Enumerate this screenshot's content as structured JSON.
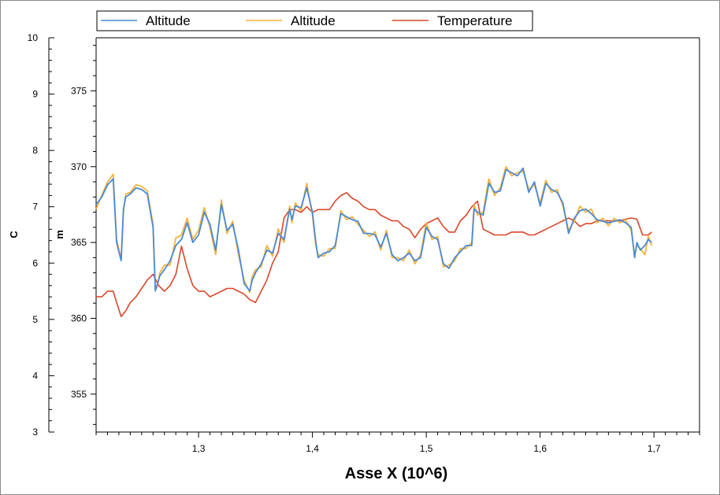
{
  "chart_data": {
    "type": "line",
    "xlabel": "Asse X (10^6)",
    "x_ticks": [
      "1,3",
      "1,4",
      "1,5",
      "1,6",
      "1,7"
    ],
    "x_tick_values": [
      1.3,
      1.4,
      1.5,
      1.6,
      1.7
    ],
    "xlim": [
      1.21,
      1.74
    ],
    "left_axis": {
      "label": "C",
      "ticks": [
        "10",
        "9",
        "8",
        "7",
        "6",
        "5",
        "4",
        "3"
      ],
      "tick_values": [
        10,
        9,
        8,
        7,
        6,
        5,
        4,
        3
      ],
      "ylim": [
        3,
        10
      ]
    },
    "inner_axis": {
      "label": "m",
      "ticks": [
        "375",
        "370",
        "365",
        "360",
        "355"
      ],
      "tick_values": [
        375,
        370,
        365,
        360,
        355
      ],
      "ylim": [
        352.5,
        378.5
      ]
    },
    "legend": {
      "placement": "top",
      "entries": [
        "Altitude",
        "Altitude",
        "Temperature"
      ]
    },
    "series": [
      {
        "name": "Altitude",
        "axis": "m",
        "color": "#4a8ad6",
        "x": [
          1.21,
          1.215,
          1.22,
          1.225,
          1.228,
          1.232,
          1.234,
          1.236,
          1.24,
          1.245,
          1.25,
          1.255,
          1.26,
          1.262,
          1.264,
          1.266,
          1.27,
          1.275,
          1.28,
          1.285,
          1.29,
          1.295,
          1.3,
          1.305,
          1.31,
          1.315,
          1.32,
          1.325,
          1.33,
          1.335,
          1.34,
          1.345,
          1.347,
          1.35,
          1.355,
          1.36,
          1.365,
          1.37,
          1.375,
          1.38,
          1.382,
          1.385,
          1.39,
          1.395,
          1.4,
          1.403,
          1.405,
          1.41,
          1.415,
          1.42,
          1.425,
          1.43,
          1.435,
          1.44,
          1.445,
          1.45,
          1.455,
          1.46,
          1.465,
          1.47,
          1.475,
          1.48,
          1.485,
          1.49,
          1.495,
          1.5,
          1.505,
          1.51,
          1.515,
          1.52,
          1.525,
          1.53,
          1.535,
          1.54,
          1.542,
          1.545,
          1.55,
          1.555,
          1.56,
          1.565,
          1.57,
          1.575,
          1.58,
          1.585,
          1.59,
          1.595,
          1.6,
          1.605,
          1.61,
          1.615,
          1.62,
          1.625,
          1.63,
          1.635,
          1.64,
          1.645,
          1.65,
          1.655,
          1.66,
          1.665,
          1.67,
          1.675,
          1.68,
          1.683,
          1.685,
          1.688,
          1.692,
          1.695,
          1.698
        ],
        "y": [
          367.5,
          368,
          368.8,
          369.2,
          365,
          363.8,
          367.2,
          368,
          368.2,
          368.6,
          368.5,
          368.2,
          366,
          361.8,
          362.3,
          362.8,
          363.2,
          363.8,
          364.8,
          365.2,
          366.3,
          365,
          365.5,
          367,
          366.2,
          364.5,
          367.5,
          365.8,
          366.2,
          364.5,
          362.3,
          361.8,
          362.5,
          363,
          363.6,
          364.5,
          364.3,
          365.6,
          365.2,
          367.2,
          366.5,
          367.4,
          367.3,
          368.6,
          367,
          365,
          364,
          364.3,
          364.4,
          364.8,
          366.9,
          366.7,
          366.5,
          366.4,
          365.6,
          365.6,
          365.5,
          364.7,
          365.6,
          364.2,
          363.8,
          364,
          364.3,
          363.8,
          364,
          366,
          365.4,
          365.2,
          363.6,
          363.3,
          364,
          364.4,
          364.8,
          364.8,
          367.2,
          367,
          366.8,
          368.9,
          368.3,
          368.4,
          369.8,
          369.6,
          369.4,
          369.9,
          368.3,
          369,
          367.4,
          368.9,
          368.5,
          368.3,
          367.6,
          365.6,
          366.6,
          367.1,
          367.2,
          366.9,
          366.5,
          366.4,
          366.3,
          366.4,
          366.5,
          366.3,
          366,
          364,
          365,
          364.5,
          364.8,
          365.2,
          365
        ]
      },
      {
        "name": "Altitude",
        "axis": "m",
        "color": "#f5b33a",
        "x": [
          1.21,
          1.215,
          1.22,
          1.225,
          1.228,
          1.232,
          1.234,
          1.236,
          1.24,
          1.245,
          1.25,
          1.255,
          1.26,
          1.262,
          1.264,
          1.266,
          1.27,
          1.275,
          1.28,
          1.285,
          1.29,
          1.295,
          1.3,
          1.305,
          1.31,
          1.315,
          1.32,
          1.325,
          1.33,
          1.335,
          1.34,
          1.345,
          1.347,
          1.35,
          1.355,
          1.36,
          1.365,
          1.37,
          1.375,
          1.38,
          1.382,
          1.385,
          1.39,
          1.395,
          1.4,
          1.403,
          1.405,
          1.41,
          1.415,
          1.42,
          1.425,
          1.43,
          1.435,
          1.44,
          1.445,
          1.45,
          1.455,
          1.46,
          1.465,
          1.47,
          1.475,
          1.48,
          1.485,
          1.49,
          1.495,
          1.5,
          1.505,
          1.51,
          1.515,
          1.52,
          1.525,
          1.53,
          1.535,
          1.54,
          1.542,
          1.545,
          1.55,
          1.555,
          1.56,
          1.565,
          1.57,
          1.575,
          1.58,
          1.585,
          1.59,
          1.595,
          1.6,
          1.605,
          1.61,
          1.615,
          1.62,
          1.625,
          1.63,
          1.635,
          1.64,
          1.645,
          1.65,
          1.655,
          1.66,
          1.665,
          1.67,
          1.675,
          1.68,
          1.683,
          1.685,
          1.688,
          1.692,
          1.695,
          1.698
        ],
        "y": [
          367.2,
          368.1,
          369,
          369.5,
          365.2,
          363.9,
          367,
          368.2,
          368.3,
          368.8,
          368.7,
          368.4,
          366.2,
          361.9,
          362.2,
          363,
          363.5,
          363.5,
          365.3,
          365.5,
          366.6,
          365.2,
          365.8,
          367.3,
          366,
          364.2,
          367.8,
          365.6,
          366.4,
          364.2,
          362.5,
          361.7,
          362.7,
          363.2,
          363.4,
          364.8,
          364.1,
          365.9,
          365,
          367.4,
          366.3,
          367.6,
          367.1,
          368.9,
          366.8,
          364.8,
          364.2,
          364.1,
          364.6,
          364.6,
          367.1,
          366.5,
          366.7,
          366.2,
          365.8,
          365.4,
          365.7,
          364.5,
          365.8,
          364,
          364,
          363.8,
          364.5,
          363.6,
          364.2,
          366.3,
          365.2,
          365.4,
          363.4,
          363.5,
          363.8,
          364.6,
          364.6,
          365,
          367.5,
          366.8,
          367,
          369.2,
          368.1,
          368.6,
          370,
          369.4,
          369.6,
          369.7,
          368.5,
          368.8,
          367.6,
          369.1,
          368.3,
          368.5,
          367.4,
          365.8,
          366.4,
          367.4,
          367,
          367.2,
          366.3,
          366.6,
          366.1,
          366.6,
          366.3,
          366.5,
          365.8,
          364.2,
          364.8,
          364.6,
          364.2,
          365.4,
          364.8
        ]
      },
      {
        "name": "Temperature",
        "axis": "C",
        "color": "#d9472b",
        "x": [
          1.21,
          1.215,
          1.22,
          1.225,
          1.228,
          1.232,
          1.236,
          1.24,
          1.245,
          1.25,
          1.255,
          1.26,
          1.265,
          1.27,
          1.275,
          1.28,
          1.285,
          1.29,
          1.295,
          1.3,
          1.305,
          1.31,
          1.315,
          1.32,
          1.325,
          1.33,
          1.335,
          1.34,
          1.345,
          1.35,
          1.355,
          1.36,
          1.365,
          1.37,
          1.375,
          1.38,
          1.385,
          1.39,
          1.395,
          1.4,
          1.405,
          1.41,
          1.415,
          1.42,
          1.425,
          1.43,
          1.435,
          1.44,
          1.445,
          1.45,
          1.455,
          1.46,
          1.465,
          1.47,
          1.475,
          1.48,
          1.485,
          1.49,
          1.495,
          1.5,
          1.505,
          1.51,
          1.515,
          1.52,
          1.525,
          1.53,
          1.535,
          1.54,
          1.545,
          1.55,
          1.555,
          1.56,
          1.565,
          1.57,
          1.575,
          1.58,
          1.585,
          1.59,
          1.595,
          1.6,
          1.605,
          1.61,
          1.615,
          1.62,
          1.625,
          1.63,
          1.635,
          1.64,
          1.645,
          1.65,
          1.655,
          1.66,
          1.665,
          1.67,
          1.675,
          1.68,
          1.685,
          1.69,
          1.695,
          1.698
        ],
        "y": [
          5.4,
          5.4,
          5.5,
          5.5,
          5.3,
          5.05,
          5.15,
          5.3,
          5.4,
          5.55,
          5.7,
          5.8,
          5.6,
          5.5,
          5.6,
          5.8,
          6.3,
          5.9,
          5.6,
          5.5,
          5.5,
          5.4,
          5.45,
          5.5,
          5.55,
          5.55,
          5.5,
          5.45,
          5.35,
          5.3,
          5.5,
          5.7,
          6.0,
          6.2,
          6.8,
          6.95,
          6.95,
          6.9,
          7.0,
          6.9,
          6.95,
          6.95,
          6.95,
          7.1,
          7.2,
          7.25,
          7.15,
          7.1,
          7.0,
          6.95,
          6.95,
          6.85,
          6.8,
          6.75,
          6.75,
          6.65,
          6.6,
          6.45,
          6.6,
          6.7,
          6.75,
          6.8,
          6.65,
          6.55,
          6.55,
          6.75,
          6.85,
          7.0,
          7.1,
          6.6,
          6.55,
          6.5,
          6.5,
          6.5,
          6.55,
          6.55,
          6.55,
          6.5,
          6.5,
          6.55,
          6.6,
          6.65,
          6.7,
          6.75,
          6.8,
          6.75,
          6.65,
          6.7,
          6.7,
          6.75,
          6.75,
          6.75,
          6.75,
          6.75,
          6.78,
          6.8,
          6.78,
          6.5,
          6.5,
          6.55
        ]
      }
    ]
  }
}
